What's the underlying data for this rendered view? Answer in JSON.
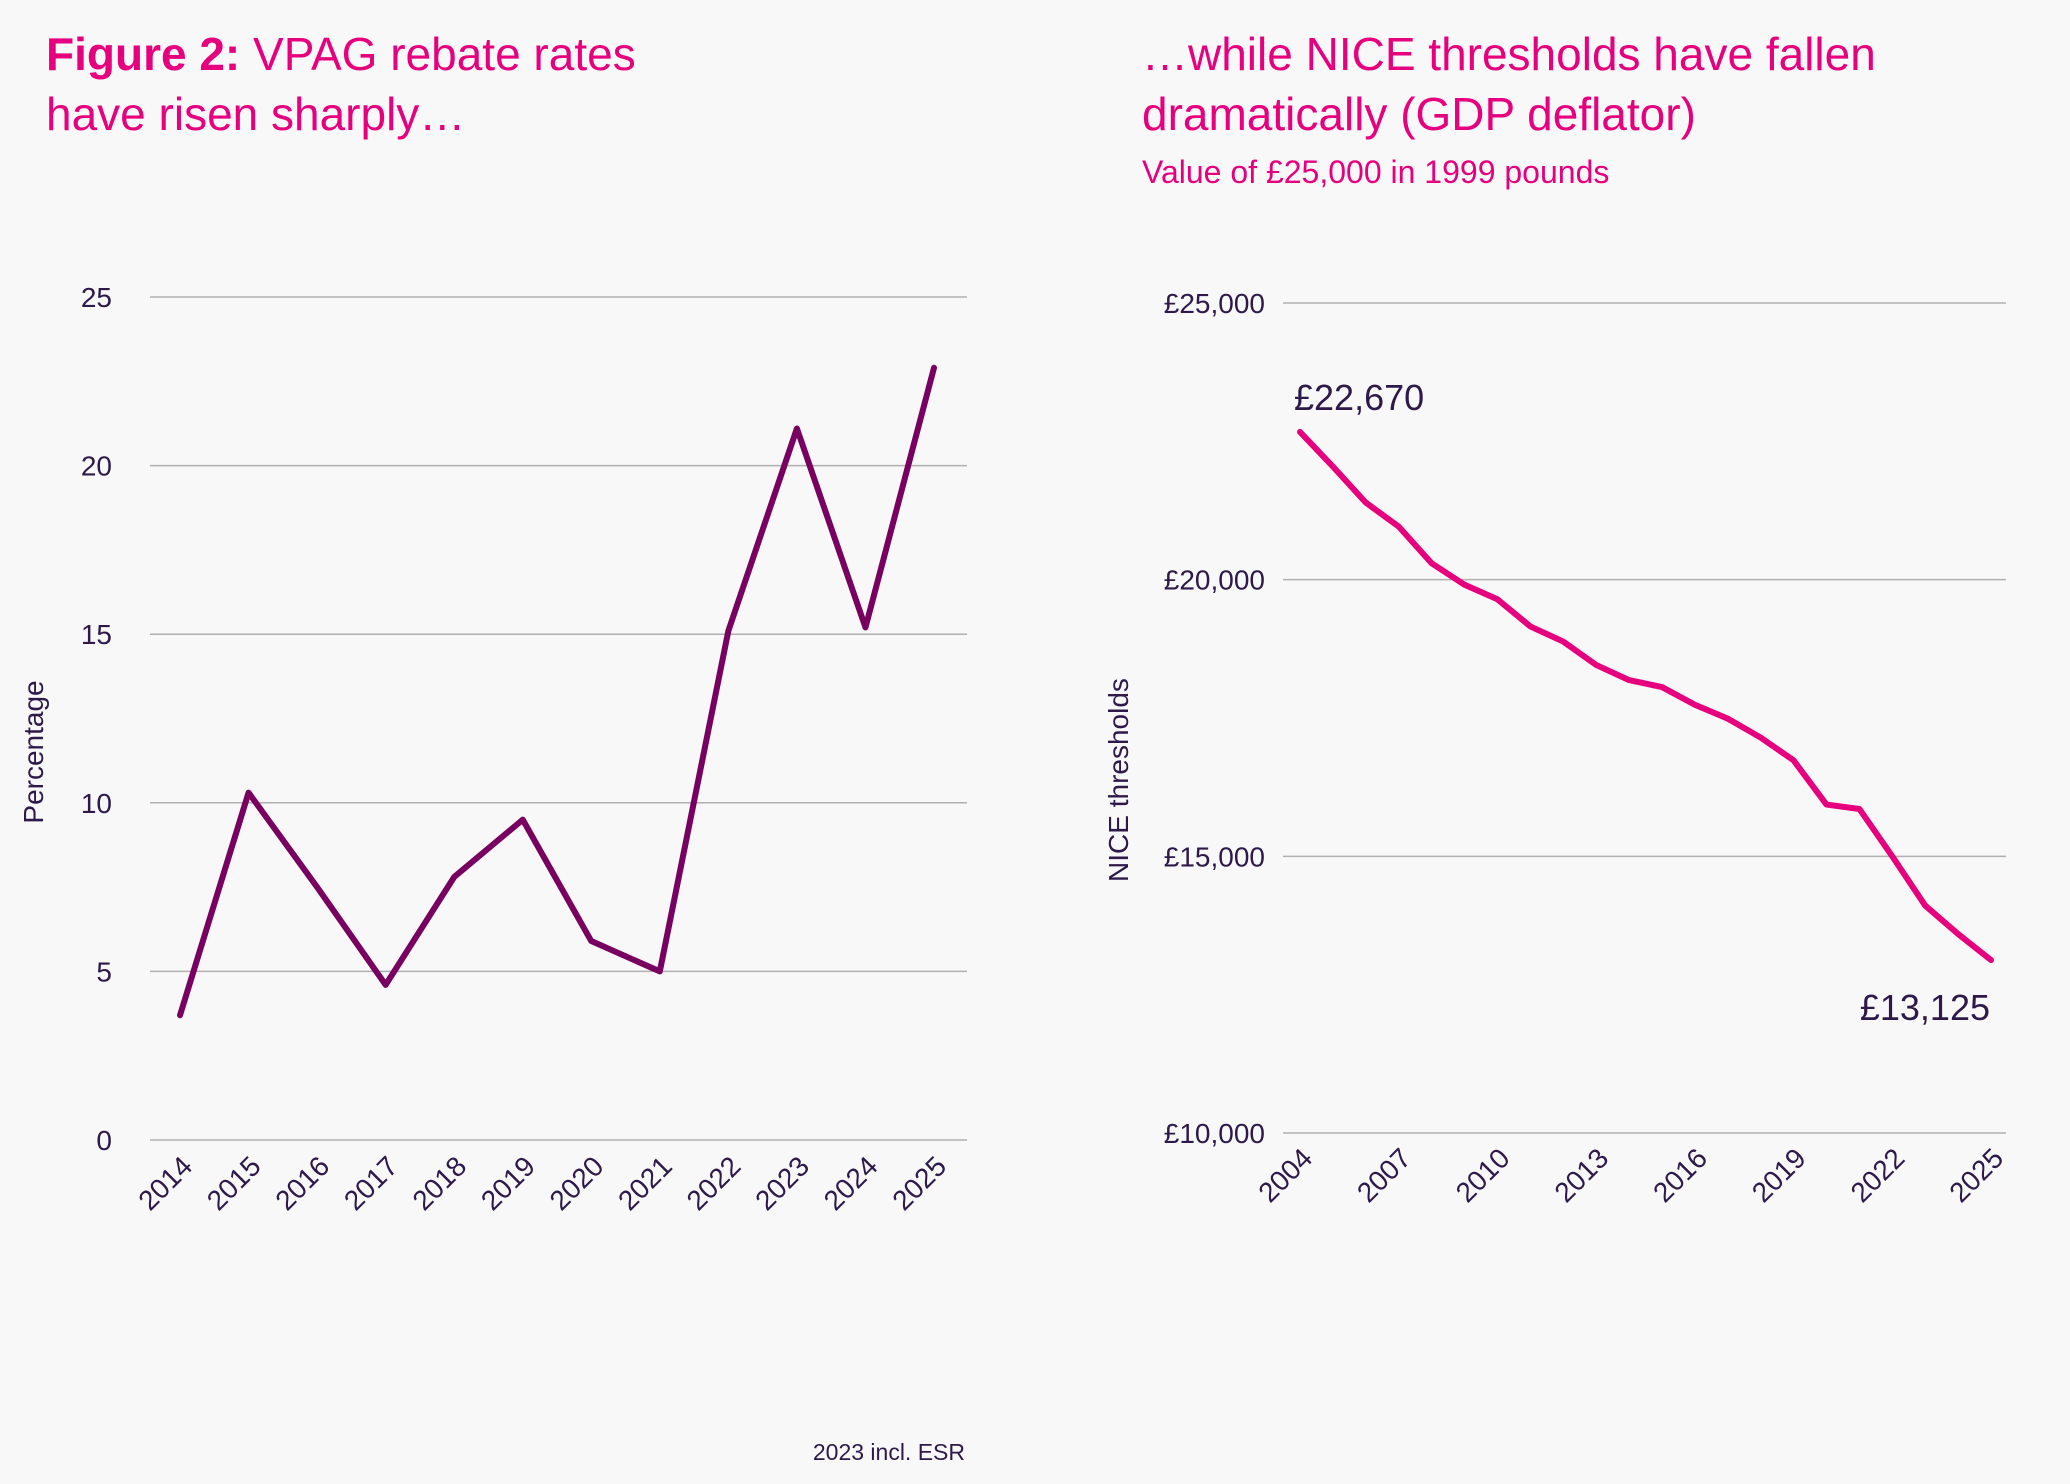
{
  "left": {
    "title_bold": "Figure 2:",
    "title_rest": " VPAG rebate rates",
    "title_line2": "have risen sharply…",
    "footnote": "2023 incl. ESR"
  },
  "right": {
    "title_line1": "…while NICE thresholds have fallen",
    "title_line2": "dramatically (GDP deflator)",
    "subtitle": "Value of £25,000 in 1999 pounds"
  },
  "colors": {
    "left_line": "#780060",
    "right_line": "#e6007e",
    "title": "#e6007e",
    "text": "#2d1a4a",
    "grid": "#b0b0b0"
  },
  "chart_data": [
    {
      "type": "line",
      "ylabel": "Percentage",
      "xlabel": "",
      "ylim": [
        0,
        25
      ],
      "yticks": [
        "0",
        "5",
        "10",
        "15",
        "20",
        "25"
      ],
      "ytick_values": [
        0,
        5,
        10,
        15,
        20,
        25
      ],
      "grid": true,
      "x": [
        "2014",
        "2015",
        "2016",
        "2017",
        "2018",
        "2019",
        "2020",
        "2021",
        "2022",
        "2023",
        "2024",
        "2025"
      ],
      "values": [
        3.7,
        10.3,
        7.5,
        4.6,
        7.8,
        9.5,
        5.9,
        5.0,
        15.1,
        21.1,
        15.2,
        22.9
      ]
    },
    {
      "type": "line",
      "ylabel": "NICE thresholds",
      "xlabel": "",
      "ylim": [
        10000,
        25000
      ],
      "yticks": [
        "£10,000",
        "£15,000",
        "£20,000",
        "£25,000"
      ],
      "ytick_values": [
        10000,
        15000,
        20000,
        25000
      ],
      "xticks": [
        "2004",
        "2007",
        "2010",
        "2013",
        "2016",
        "2019",
        "2022",
        "2025"
      ],
      "grid": true,
      "x": [
        2004,
        2005,
        2006,
        2007,
        2008,
        2009,
        2010,
        2011,
        2012,
        2013,
        2014,
        2015,
        2016,
        2017,
        2018,
        2019,
        2020,
        2021,
        2022,
        2023,
        2024,
        2025
      ],
      "values": [
        22670,
        22044,
        21393,
        20959,
        20297,
        19909,
        19646,
        19155,
        18881,
        18459,
        18185,
        18059,
        17740,
        17489,
        17146,
        16735,
        15936,
        15856,
        15000,
        14110,
        13596,
        13125
      ],
      "annotations": [
        {
          "x": 2004,
          "label": "£22,670"
        },
        {
          "x": 2025,
          "label": "£13,125"
        }
      ]
    }
  ]
}
